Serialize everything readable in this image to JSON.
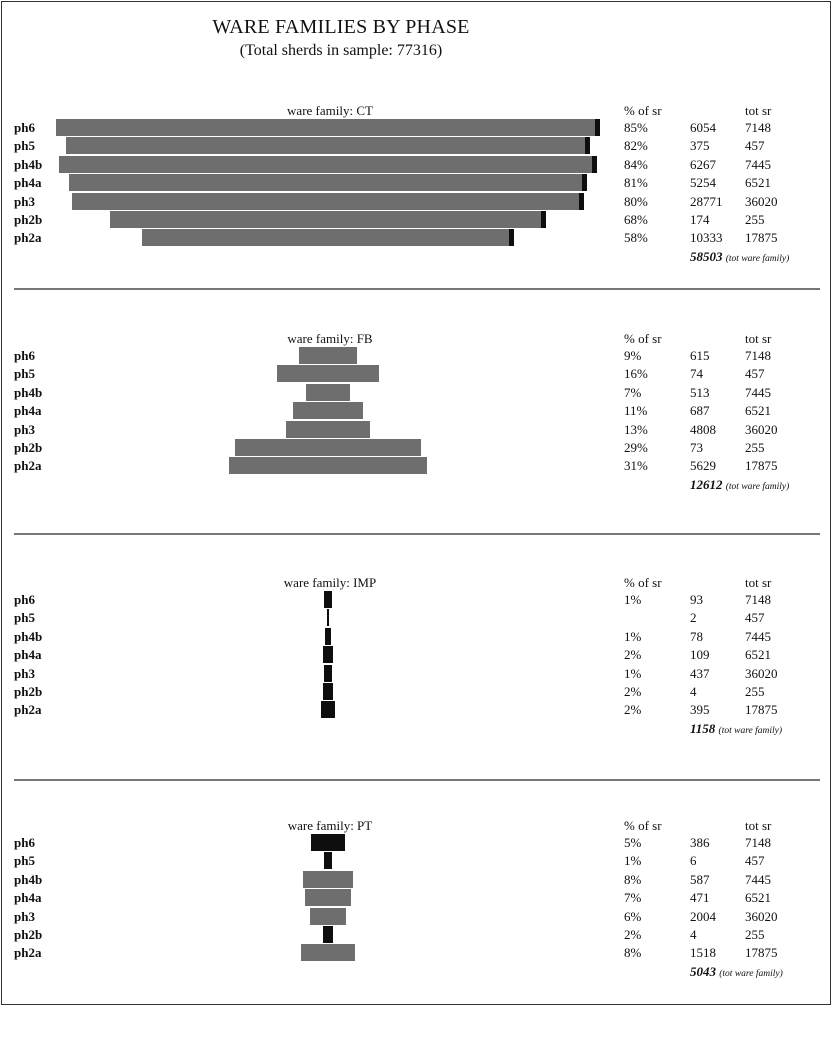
{
  "title": "WARE FAMILIES BY PHASE",
  "subtitle": "(Total sherds in sample: 77316)",
  "column_headers": {
    "pct": "% of sr",
    "tot": "tot sr"
  },
  "total_note": "(tot ware family)",
  "colors": {
    "grey_bar": "#6e6e6e",
    "black_bar": "#0e0e0e",
    "divider": "#777777"
  },
  "chart_data": [
    {
      "type": "bar",
      "title": "ware family: CT",
      "categories": [
        "ph6",
        "ph5",
        "ph4b",
        "ph4a",
        "ph3",
        "ph2b",
        "ph2a"
      ],
      "values": [
        6054,
        375,
        6267,
        5254,
        28771,
        174,
        10333
      ],
      "pct_labels": [
        "85%",
        "82%",
        "84%",
        "81%",
        "80%",
        "68%",
        "58%"
      ],
      "count_labels": [
        "6054",
        "375",
        "6267",
        "5254",
        "28771",
        "174",
        "10333"
      ],
      "tot_labels": [
        "7148",
        "457",
        "7445",
        "6521",
        "36020",
        "255",
        "17875"
      ],
      "bar_pct": [
        85,
        82,
        84,
        81,
        80,
        68,
        58
      ],
      "bar_style": [
        "grey",
        "grey",
        "grey",
        "grey",
        "grey",
        "grey",
        "grey"
      ],
      "total": "58503"
    },
    {
      "type": "bar",
      "title": "ware family: FB",
      "categories": [
        "ph6",
        "ph5",
        "ph4b",
        "ph4a",
        "ph3",
        "ph2b",
        "ph2a"
      ],
      "values": [
        615,
        74,
        513,
        687,
        4808,
        73,
        5629
      ],
      "pct_labels": [
        "9%",
        "16%",
        "7%",
        "11%",
        "13%",
        "29%",
        "31%"
      ],
      "count_labels": [
        "615",
        "74",
        "513",
        "687",
        "4808",
        "73",
        "5629"
      ],
      "tot_labels": [
        "7148",
        "457",
        "7445",
        "6521",
        "36020",
        "255",
        "17875"
      ],
      "bar_pct": [
        9,
        16,
        7,
        11,
        13,
        29,
        31
      ],
      "bar_style": [
        "grey",
        "grey",
        "grey",
        "grey",
        "grey",
        "grey",
        "grey"
      ],
      "total": "12612"
    },
    {
      "type": "bar",
      "title": "ware family: IMP",
      "categories": [
        "ph6",
        "ph5",
        "ph4b",
        "ph4a",
        "ph3",
        "ph2b",
        "ph2a"
      ],
      "values": [
        93,
        2,
        78,
        109,
        437,
        4,
        395
      ],
      "pct_labels": [
        "1%",
        "",
        "1%",
        "2%",
        "1%",
        "2%",
        "2%"
      ],
      "count_labels": [
        "93",
        "2",
        "78",
        "109",
        "437",
        "4",
        "395"
      ],
      "tot_labels": [
        "7148",
        "457",
        "7445",
        "6521",
        "36020",
        "255",
        "17875"
      ],
      "bar_pct": [
        1.3,
        0.4,
        1.0,
        1.7,
        1.2,
        1.6,
        2.2
      ],
      "bar_style": [
        "black",
        "black",
        "black",
        "black",
        "black",
        "black",
        "black"
      ],
      "total": "1158"
    },
    {
      "type": "bar",
      "title": "ware family: PT",
      "categories": [
        "ph6",
        "ph5",
        "ph4b",
        "ph4a",
        "ph3",
        "ph2b",
        "ph2a"
      ],
      "values": [
        386,
        6,
        587,
        471,
        2004,
        4,
        1518
      ],
      "pct_labels": [
        "5%",
        "1%",
        "8%",
        "7%",
        "6%",
        "2%",
        "8%"
      ],
      "count_labels": [
        "386",
        "6",
        "587",
        "471",
        "2004",
        "4",
        "1518"
      ],
      "tot_labels": [
        "7148",
        "457",
        "7445",
        "6521",
        "36020",
        "255",
        "17875"
      ],
      "bar_pct": [
        5.4,
        1.3,
        7.9,
        7.2,
        5.6,
        1.6,
        8.5
      ],
      "bar_style": [
        "black",
        "black",
        "grey",
        "grey",
        "grey",
        "black",
        "grey"
      ],
      "total": "5043"
    }
  ]
}
